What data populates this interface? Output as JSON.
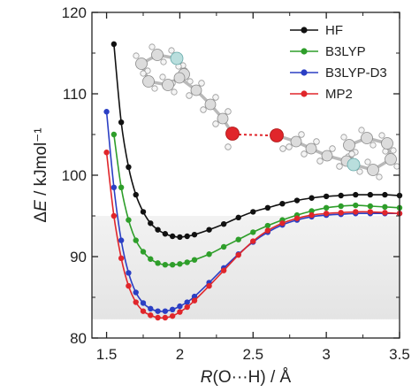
{
  "chart_data": {
    "type": "line",
    "title": "",
    "xlabel": "R(O···H) / Å",
    "ylabel": "ΔE / kJmol⁻¹",
    "xlim": [
      1.4,
      3.5
    ],
    "ylim": [
      80,
      120
    ],
    "x_ticks": [
      1.5,
      2,
      2.5,
      3,
      3.5
    ],
    "x_tick_labels": [
      "1.5",
      "2",
      "2.5",
      "3",
      "3.5"
    ],
    "y_ticks": [
      80,
      90,
      100,
      110,
      120
    ],
    "y_tick_labels": [
      "80",
      "90",
      "100",
      "110",
      "120"
    ],
    "shaded_band": {
      "ymin": 82.3,
      "ymax": 95,
      "color": "#e4e4e4"
    },
    "legend_position": "top-right",
    "inset_image": "molecular-structure-o-h-bond",
    "series": [
      {
        "name": "HF",
        "color": "#111111",
        "x": [
          1.55,
          1.6,
          1.65,
          1.7,
          1.75,
          1.8,
          1.85,
          1.9,
          1.95,
          2.0,
          2.05,
          2.1,
          2.2,
          2.3,
          2.4,
          2.5,
          2.6,
          2.7,
          2.8,
          2.9,
          3.0,
          3.1,
          3.2,
          3.3,
          3.4,
          3.5
        ],
        "y": [
          116.1,
          106.5,
          101.0,
          97.6,
          95.5,
          94.1,
          93.3,
          92.8,
          92.5,
          92.4,
          92.5,
          92.7,
          93.3,
          94.0,
          94.8,
          95.5,
          96.0,
          96.5,
          96.9,
          97.2,
          97.4,
          97.5,
          97.6,
          97.6,
          97.6,
          97.5
        ]
      },
      {
        "name": "B3LYP",
        "color": "#2e9e2a",
        "x": [
          1.55,
          1.6,
          1.65,
          1.7,
          1.75,
          1.8,
          1.85,
          1.9,
          1.95,
          2.0,
          2.05,
          2.1,
          2.2,
          2.3,
          2.4,
          2.5,
          2.6,
          2.7,
          2.8,
          2.9,
          3.0,
          3.1,
          3.2,
          3.3,
          3.4,
          3.5
        ],
        "y": [
          105.0,
          98.5,
          94.5,
          92.0,
          90.6,
          89.7,
          89.2,
          89.0,
          89.0,
          89.1,
          89.3,
          89.6,
          90.3,
          91.2,
          92.1,
          93.0,
          93.8,
          94.5,
          95.1,
          95.6,
          96.0,
          96.2,
          96.3,
          96.2,
          96.1,
          96.0
        ]
      },
      {
        "name": "B3LYP-D3",
        "color": "#2b3fc4",
        "x": [
          1.5,
          1.55,
          1.6,
          1.65,
          1.7,
          1.75,
          1.8,
          1.85,
          1.9,
          1.95,
          2.0,
          2.05,
          2.1,
          2.2,
          2.3,
          2.4,
          2.5,
          2.6,
          2.7,
          2.8,
          2.9,
          3.0,
          3.1,
          3.2,
          3.3,
          3.4,
          3.5
        ],
        "y": [
          107.8,
          98.5,
          92.0,
          88.0,
          85.6,
          84.3,
          83.6,
          83.3,
          83.3,
          83.5,
          83.9,
          84.4,
          85.1,
          86.8,
          88.6,
          90.3,
          91.8,
          93.0,
          93.9,
          94.5,
          94.9,
          95.1,
          95.2,
          95.3,
          95.3,
          95.3,
          95.3
        ]
      },
      {
        "name": "MP2",
        "color": "#e0262b",
        "x": [
          1.5,
          1.55,
          1.6,
          1.65,
          1.7,
          1.75,
          1.8,
          1.85,
          1.9,
          1.95,
          2.0,
          2.05,
          2.1,
          2.2,
          2.3,
          2.4,
          2.5,
          2.6,
          2.7,
          2.8,
          2.9,
          3.0,
          3.1,
          3.2,
          3.3,
          3.4,
          3.5
        ],
        "y": [
          102.8,
          95.0,
          89.8,
          86.4,
          84.4,
          83.3,
          82.8,
          82.5,
          82.5,
          82.7,
          83.2,
          83.8,
          84.6,
          86.4,
          88.3,
          90.2,
          91.9,
          93.2,
          94.1,
          94.7,
          95.1,
          95.3,
          95.4,
          95.5,
          95.5,
          95.4,
          95.3
        ]
      }
    ]
  }
}
